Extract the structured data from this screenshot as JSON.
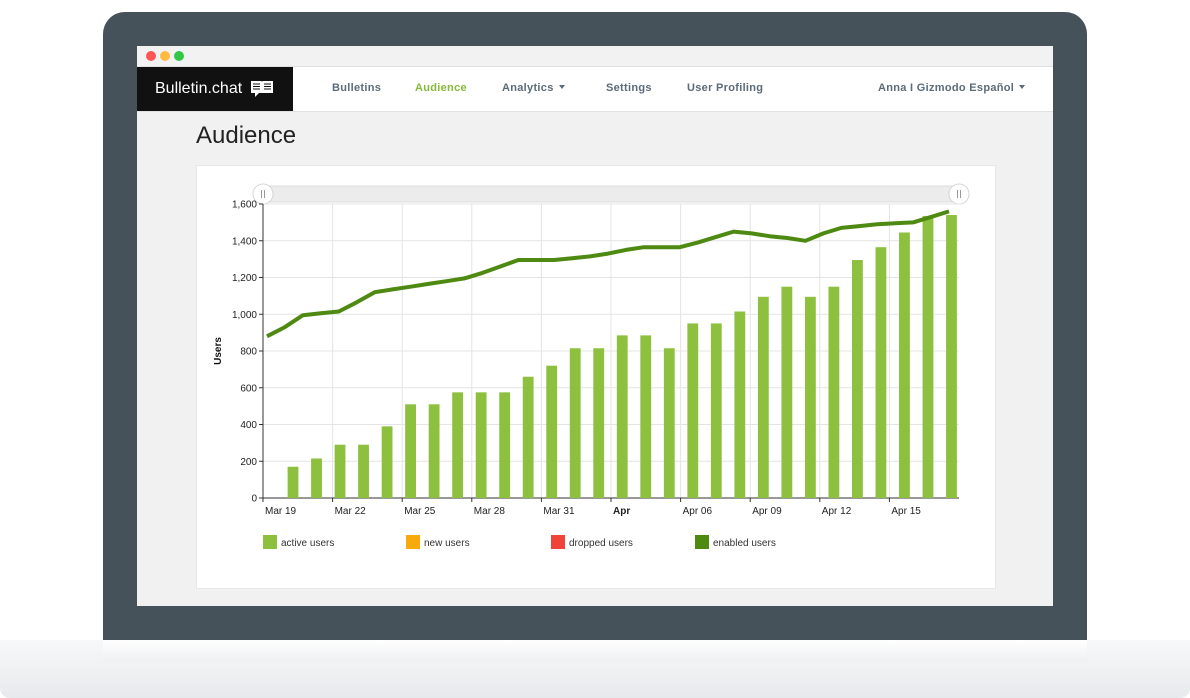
{
  "window": {
    "brand": "Bulletin.chat",
    "brand_icon": "book-chat-icon"
  },
  "nav": {
    "items": [
      {
        "label": "Bulletins",
        "active": false,
        "dropdown": false
      },
      {
        "label": "Audience",
        "active": true,
        "dropdown": false
      },
      {
        "label": "Analytics",
        "active": false,
        "dropdown": true
      },
      {
        "label": "Settings",
        "active": false,
        "dropdown": false
      },
      {
        "label": "User Profiling",
        "active": false,
        "dropdown": false
      }
    ],
    "account": "Anna I Gizmodo Español"
  },
  "page": {
    "title": "Audience"
  },
  "colors": {
    "accent": "#86b93a",
    "active_bar": "#8dc03f",
    "new_users": "#f8a90b",
    "dropped_users": "#f0443b",
    "enabled_line": "#4e8a12"
  },
  "chart_data": {
    "type": "bar",
    "ylabel": "Users",
    "ylim": [
      0,
      1600
    ],
    "yticks": [
      "0",
      "200",
      "400",
      "600",
      "800",
      "1,000",
      "1,200",
      "1,400",
      "1,600"
    ],
    "xticks": [
      {
        "label": "Mar 19",
        "bold": false
      },
      {
        "label": "Mar 22",
        "bold": false
      },
      {
        "label": "Mar 25",
        "bold": false
      },
      {
        "label": "Mar 28",
        "bold": false
      },
      {
        "label": "Mar 31",
        "bold": false
      },
      {
        "label": "Apr",
        "bold": true
      },
      {
        "label": "Apr 06",
        "bold": false
      },
      {
        "label": "Apr 09",
        "bold": false
      },
      {
        "label": "Apr 12",
        "bold": false
      },
      {
        "label": "Apr 15",
        "bold": false
      }
    ],
    "series": [
      {
        "name": "active users",
        "type": "bar",
        "color": "#8dc03f",
        "values": [
          170,
          215,
          290,
          290,
          390,
          510,
          510,
          575,
          575,
          575,
          660,
          720,
          815,
          815,
          885,
          885,
          815,
          950,
          950,
          1015,
          1095,
          1150,
          1095,
          1150,
          1295,
          1365,
          1445,
          1535,
          1540
        ]
      },
      {
        "name": "new users",
        "type": "bar",
        "color": "#f8a90b",
        "values": []
      },
      {
        "name": "dropped users",
        "type": "bar",
        "color": "#f0443b",
        "values": []
      },
      {
        "name": "enabled users",
        "type": "line",
        "color": "#4e8a12",
        "values": [
          880,
          930,
          995,
          1005,
          1015,
          1065,
          1120,
          1135,
          1150,
          1165,
          1180,
          1195,
          1225,
          1260,
          1295,
          1295,
          1295,
          1305,
          1315,
          1330,
          1350,
          1365,
          1365,
          1365,
          1390,
          1420,
          1450,
          1440,
          1425,
          1415,
          1400,
          1440,
          1470,
          1480,
          1490,
          1495,
          1500,
          1530,
          1560
        ]
      }
    ],
    "grid": true,
    "legend_position": "bottom"
  }
}
